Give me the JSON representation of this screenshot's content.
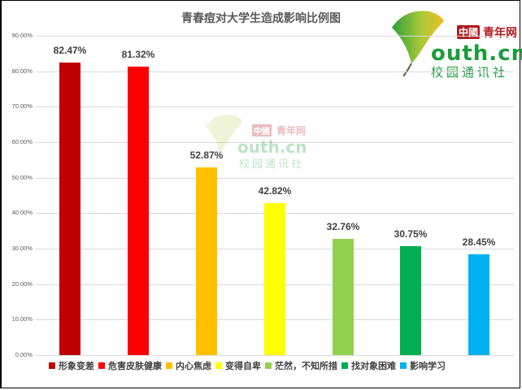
{
  "chart_data": {
    "type": "bar",
    "title": "青春痘对大学生造成影响比例图",
    "xlabel": "",
    "ylabel": "",
    "ylim": [
      0,
      90
    ],
    "yticks": [
      "0.00%",
      "10.00%",
      "20.00%",
      "30.00%",
      "40.00%",
      "50.00%",
      "60.00%",
      "70.00%",
      "80.00%",
      "90.00%"
    ],
    "grid": true,
    "legend_position": "bottom",
    "categories": [
      "形象变差",
      "危害皮肤健康",
      "内心焦虑",
      "变得自卑",
      "茫然，不知所措",
      "找对象困难",
      "影响学习"
    ],
    "values": [
      82.47,
      81.32,
      52.87,
      42.82,
      32.76,
      30.75,
      28.45
    ],
    "value_labels": [
      "82.47%",
      "81.32%",
      "52.87%",
      "42.82%",
      "32.76%",
      "30.75%",
      "28.45%"
    ],
    "colors": [
      "#c00000",
      "#ff0000",
      "#ffc000",
      "#ffff00",
      "#92d050",
      "#00b050",
      "#00b0f0"
    ]
  },
  "logo": {
    "badge": "中國",
    "site": "青年网",
    "domain": "outh.cn",
    "sub": "校园通讯社"
  }
}
